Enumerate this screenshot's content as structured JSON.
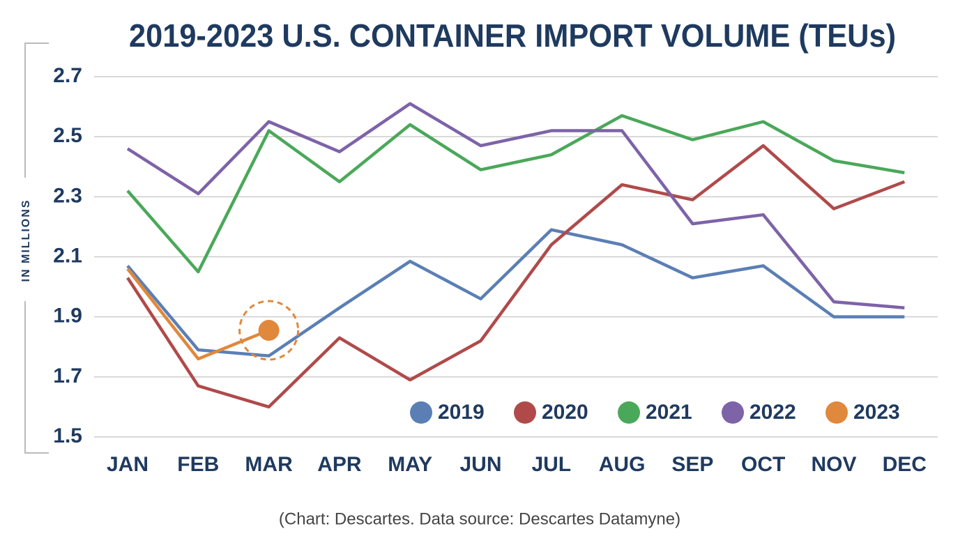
{
  "chart_data": {
    "type": "line",
    "title": "2019-2023 U.S. CONTAINER IMPORT VOLUME (TEUs)",
    "y_label": "IN MILLIONS",
    "source": "(Chart: Descartes. Data source: Descartes Datamyne)",
    "categories": [
      "JAN",
      "FEB",
      "MAR",
      "APR",
      "MAY",
      "JUN",
      "JUL",
      "AUG",
      "SEP",
      "OCT",
      "NOV",
      "DEC"
    ],
    "series": [
      {
        "name": "2019",
        "color": "#5b7fb5",
        "values": [
          2.07,
          1.79,
          1.77,
          1.93,
          2.085,
          1.96,
          2.19,
          2.14,
          2.03,
          2.07,
          1.9,
          1.9
        ]
      },
      {
        "name": "2020",
        "color": "#b04a4a",
        "values": [
          2.03,
          1.67,
          1.6,
          1.83,
          1.69,
          1.82,
          2.14,
          2.34,
          2.29,
          2.47,
          2.26,
          2.35
        ]
      },
      {
        "name": "2021",
        "color": "#4aa85a",
        "values": [
          2.32,
          2.05,
          2.52,
          2.35,
          2.54,
          2.39,
          2.44,
          2.57,
          2.49,
          2.55,
          2.42,
          2.38
        ]
      },
      {
        "name": "2022",
        "color": "#7d63a8",
        "values": [
          2.46,
          2.31,
          2.55,
          2.45,
          2.61,
          2.47,
          2.52,
          2.52,
          2.21,
          2.24,
          1.95,
          1.93
        ]
      },
      {
        "name": "2023",
        "color": "#e0883c",
        "values": [
          2.06,
          1.76,
          1.855,
          null,
          null,
          null,
          null,
          null,
          null,
          null,
          null,
          null
        ]
      }
    ],
    "ylim": [
      1.5,
      2.7
    ],
    "yticks": [
      {
        "value": 1.5,
        "label": "1.5"
      },
      {
        "value": 1.7,
        "label": "1.7"
      },
      {
        "value": 1.9,
        "label": "1.9"
      },
      {
        "value": 2.1,
        "label": "2.1"
      },
      {
        "value": 2.3,
        "label": "2.3"
      },
      {
        "value": 2.5,
        "label": "2.5"
      },
      {
        "value": 2.7,
        "label": "2.7"
      }
    ],
    "grid": true,
    "legend": "lower right"
  }
}
